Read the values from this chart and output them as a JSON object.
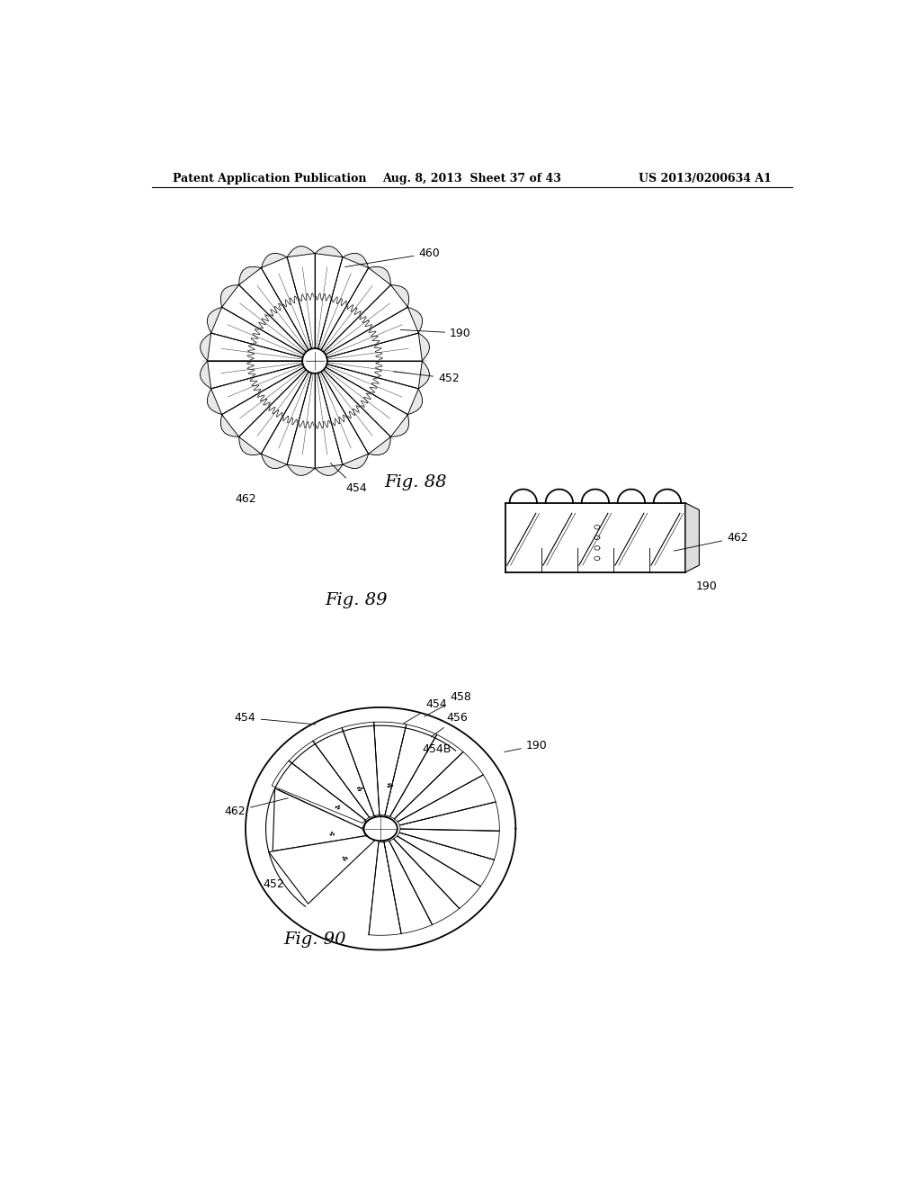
{
  "background_color": "#ffffff",
  "header_left": "Patent Application Publication",
  "header_mid": "Aug. 8, 2013  Sheet 37 of 43",
  "header_right": "US 2013/0200634 A1",
  "fig88_label": "Fig. 88",
  "fig89_label": "Fig. 89",
  "fig90_label": "Fig. 90",
  "lw": 0.8,
  "lw_thick": 1.3
}
